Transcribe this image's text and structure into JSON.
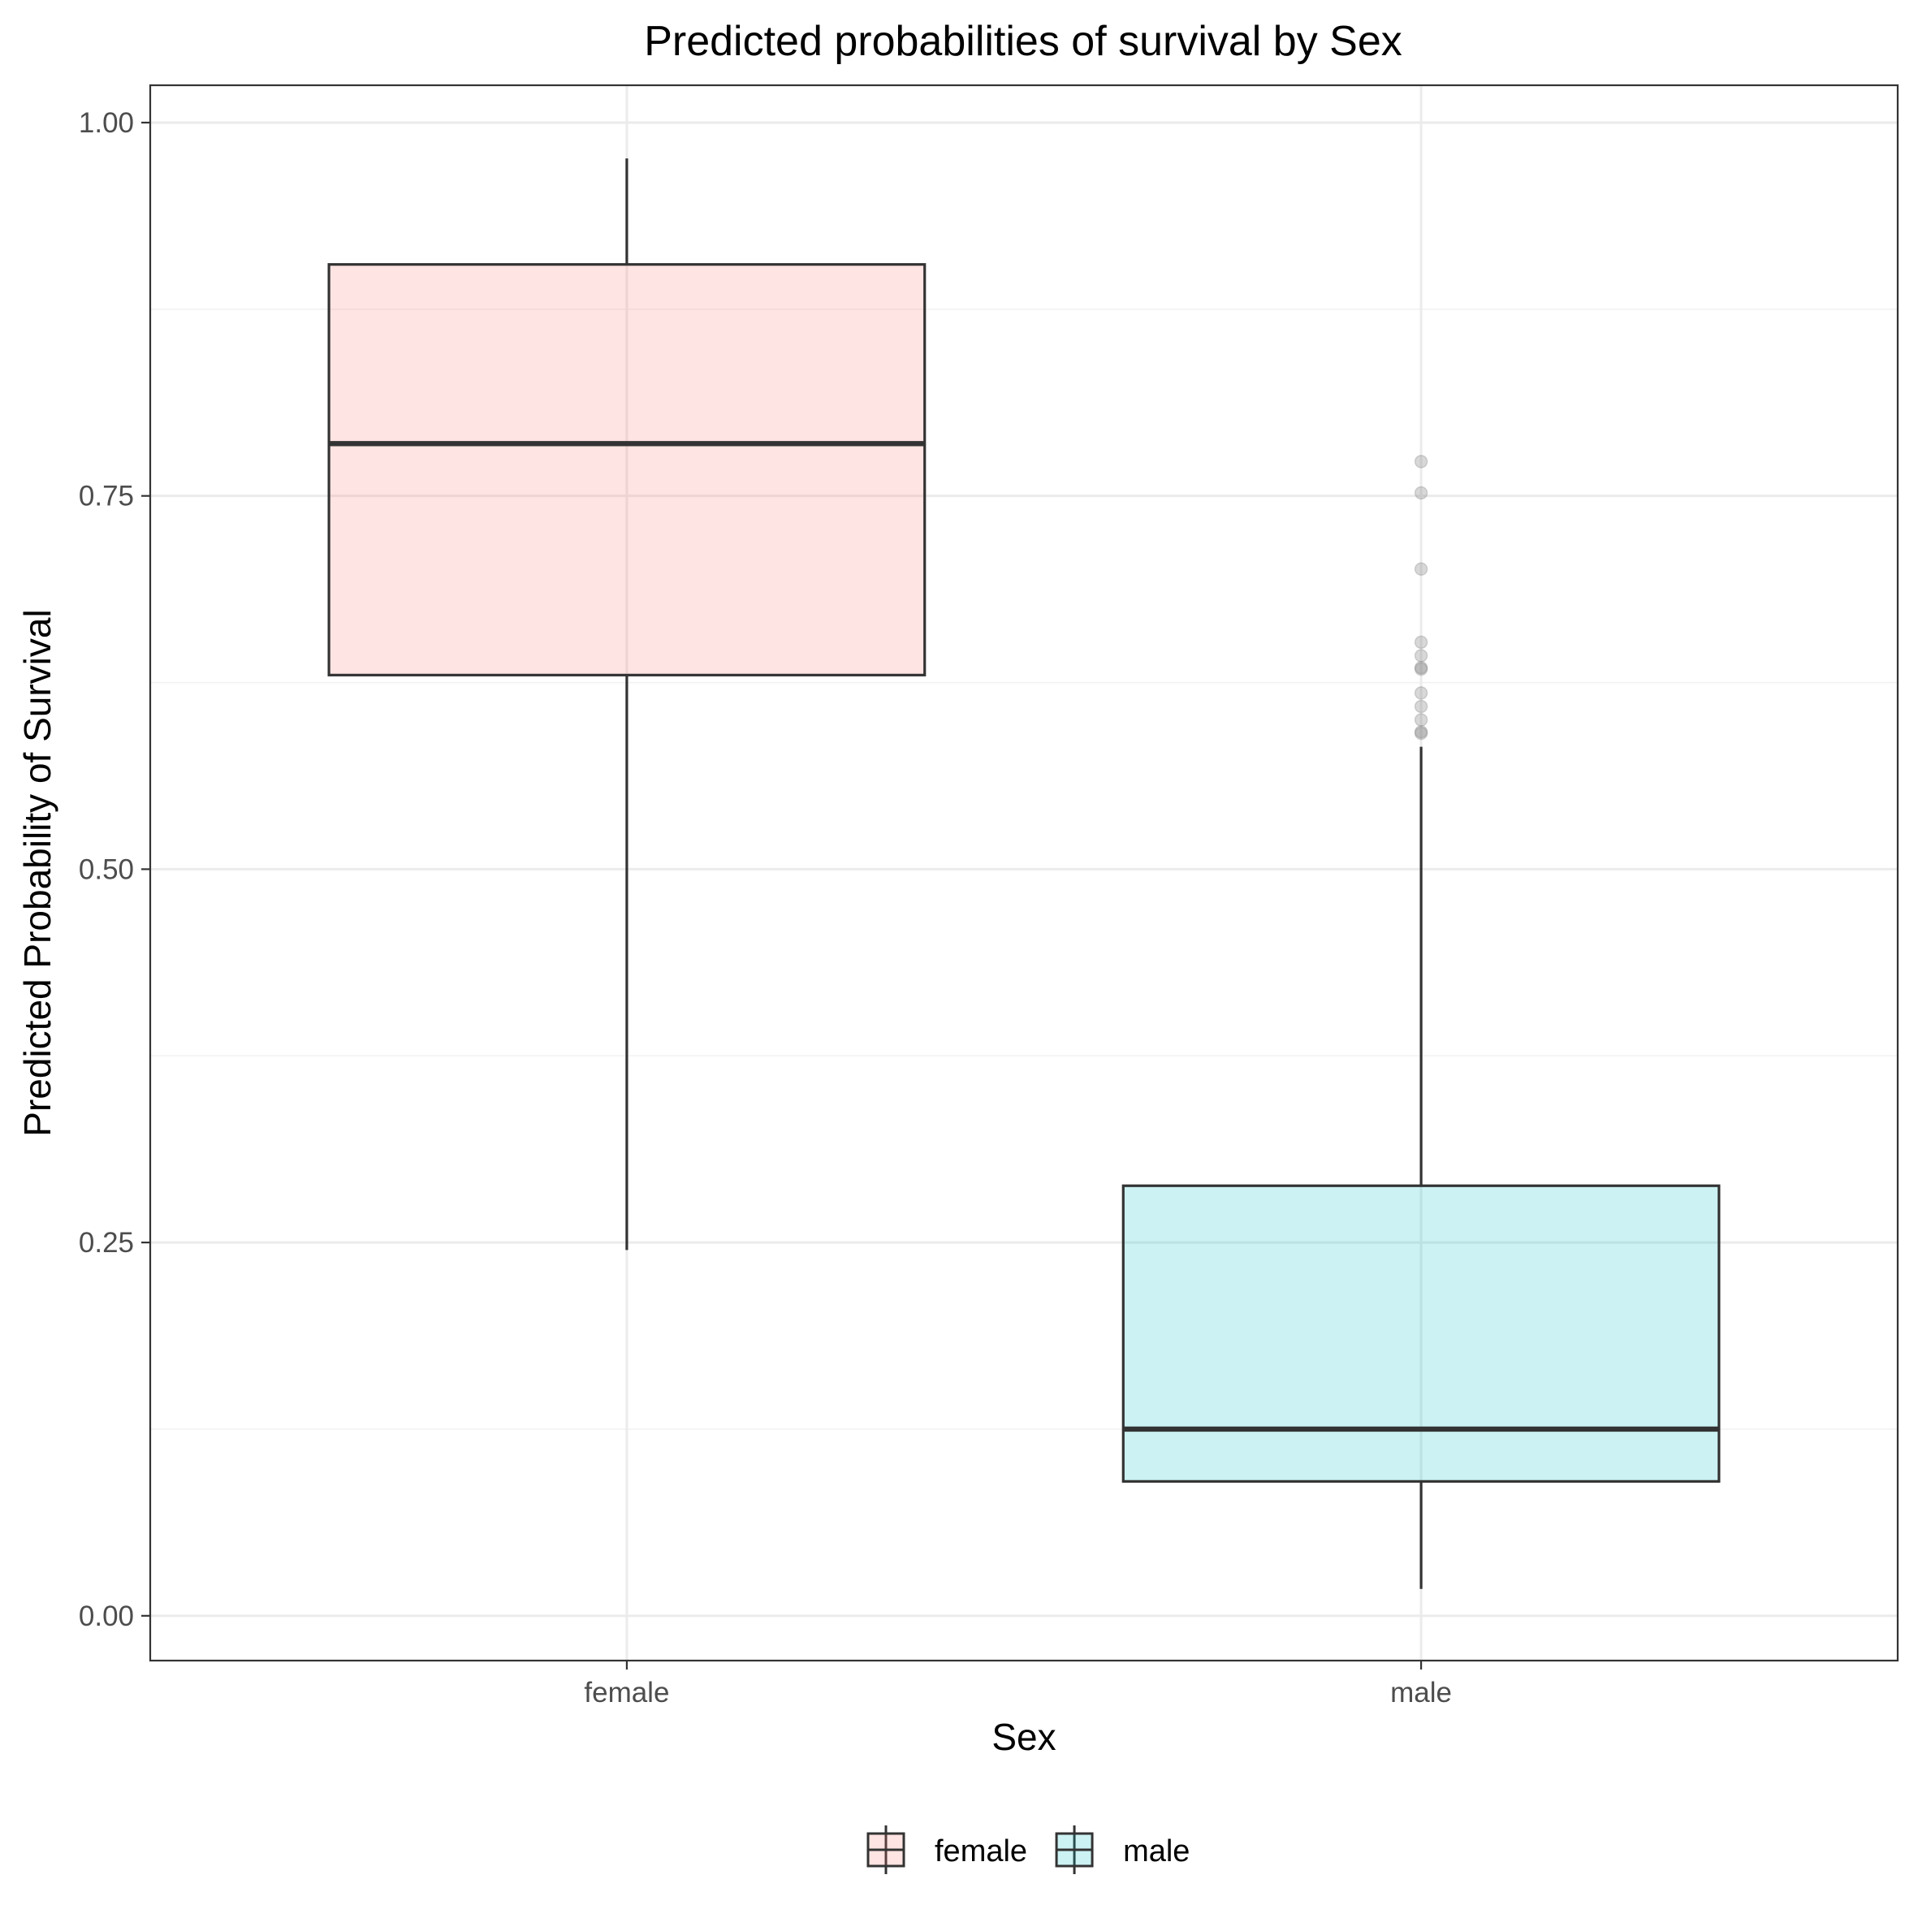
{
  "chart_data": {
    "type": "boxplot",
    "title": "Predicted probabilities of survival by Sex",
    "xlabel": "Sex",
    "ylabel": "Predicted Probability of Survival",
    "categories": [
      "female",
      "male"
    ],
    "ylim": [
      -0.03,
      1.025
    ],
    "yticks": [
      0.0,
      0.25,
      0.5,
      0.75,
      1.0
    ],
    "ytick_labels": [
      "0.00",
      "0.25",
      "0.50",
      "0.75",
      "1.00"
    ],
    "grid": true,
    "legend_position": "bottom",
    "series": [
      {
        "name": "female",
        "color": "#F8766D",
        "fill": "#FEE4E5",
        "whisker_low": 0.245,
        "q1": 0.63,
        "median": 0.785,
        "q3": 0.905,
        "whisker_high": 0.976,
        "outliers": []
      },
      {
        "name": "male",
        "color": "#00BFC4",
        "fill": "#CCF1F2",
        "whisker_low": 0.018,
        "q1": 0.09,
        "median": 0.125,
        "q3": 0.288,
        "whisker_high": 0.582,
        "outliers": [
          0.773,
          0.752,
          0.701,
          0.652,
          0.643,
          0.635,
          0.634,
          0.618,
          0.609,
          0.6,
          0.592,
          0.591
        ]
      }
    ]
  }
}
